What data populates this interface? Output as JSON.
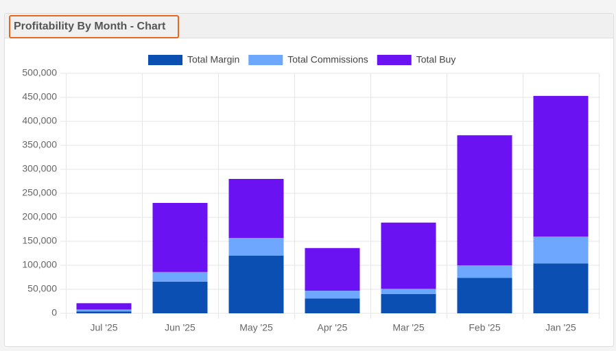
{
  "chart_data": {
    "type": "stacked_bar",
    "title": "Profitability By Month - Chart",
    "categories": [
      "Jul '25",
      "Jun '25",
      "May '25",
      "Apr '25",
      "Mar '25",
      "Feb '25",
      "Jan '25"
    ],
    "series": [
      {
        "name": "Total Margin",
        "color": "#0b4fb3",
        "values": [
          4000,
          66000,
          120000,
          31000,
          40000,
          74000,
          104000
        ]
      },
      {
        "name": "Total Commissions",
        "color": "#6ea8fe",
        "values": [
          4000,
          20000,
          37000,
          16000,
          11000,
          26000,
          56000
        ]
      },
      {
        "name": "Total Buy",
        "color": "#6a12f2",
        "values": [
          13000,
          144000,
          123000,
          89000,
          138000,
          271000,
          293000
        ]
      }
    ],
    "ylim": [
      0,
      500000
    ],
    "yticks": [
      0,
      {
        "value": 50000,
        "label": "50,000"
      },
      {
        "value": 100000,
        "label": "100,000"
      },
      {
        "value": 150000,
        "label": "150,000"
      },
      {
        "value": 200000,
        "label": "200,000"
      },
      {
        "value": 250000,
        "label": "250,000"
      },
      {
        "value": 300000,
        "label": "300,000"
      },
      {
        "value": 350000,
        "label": "350,000"
      },
      {
        "value": 400000,
        "label": "400,000"
      },
      {
        "value": 450000,
        "label": "450,000"
      },
      {
        "value": 500000,
        "label": "500,000"
      }
    ],
    "grid": true,
    "legend": "top"
  }
}
